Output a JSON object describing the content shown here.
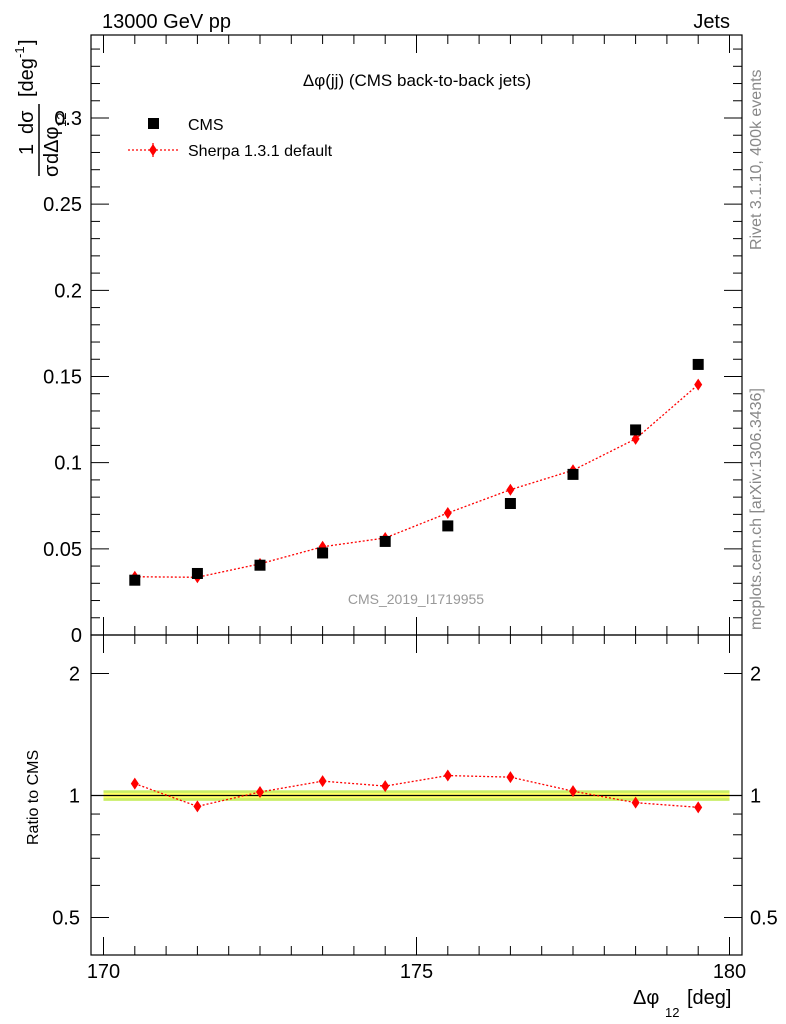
{
  "header": {
    "left": "13000 GeV pp",
    "right": "Jets"
  },
  "side_labels": {
    "rivet": "Rivet 3.1.10,  400k events",
    "mcplots": "mcplots.cern.ch [arXiv:1306.3436]"
  },
  "chart_data": [
    {
      "type": "scatter",
      "title": "Δφ(jj) (CMS back-to-back jets)",
      "watermark": "CMS_2019_I1719955",
      "ylabel": "1/σ dσ/dΔφ12 [deg⁻¹]",
      "ylabel_parts": {
        "num_left": "1",
        "num_right": "dσ",
        "den_left": "σ",
        "den_right": "dΔφ",
        "den_sub": "12",
        "unit": "[deg",
        "unit_sup": "-1",
        "unit_close": "]"
      },
      "xlim": [
        170,
        180
      ],
      "ylim": [
        0,
        0.35
      ],
      "y_ticks": [
        0,
        0.05,
        0.1,
        0.15,
        0.2,
        0.25,
        0.3
      ],
      "y_tick_labels": [
        "0",
        "0.05",
        "0.1",
        "0.15",
        "0.2",
        "0.25",
        "0.3"
      ],
      "legend_placement": "top-left",
      "series": [
        {
          "name": "CMS",
          "marker": "square",
          "color": "#000000",
          "x": [
            170.5,
            171.5,
            172.5,
            173.5,
            174.5,
            175.5,
            176.5,
            177.5,
            178.5,
            179.5
          ],
          "y": [
            0.0318,
            0.0357,
            0.0405,
            0.0476,
            0.0543,
            0.0633,
            0.0763,
            0.0932,
            0.119,
            0.157
          ]
        },
        {
          "name": "Sherpa 1.3.1 default",
          "marker": "diamond",
          "line": "dotted",
          "color": "#ff0000",
          "x": [
            170.5,
            171.5,
            172.5,
            173.5,
            174.5,
            175.5,
            176.5,
            177.5,
            178.5,
            179.5
          ],
          "y": [
            0.0338,
            0.0335,
            0.0413,
            0.0512,
            0.0563,
            0.0708,
            0.0843,
            0.0956,
            0.1138,
            0.1453
          ],
          "yerr": [
            0.0015,
            0.0012,
            0.0012,
            0.0015,
            0.0015,
            0.0016,
            0.0016,
            0.0016,
            0.0018,
            0.0022
          ]
        }
      ]
    },
    {
      "type": "scatter",
      "ylabel": "Ratio to CMS",
      "xlabel": "Δφ12 [deg]",
      "xlabel_parts": {
        "main": "Δφ",
        "sub": "12",
        "unit": "[deg]"
      },
      "xlim": [
        170,
        180
      ],
      "ylim": [
        0.35,
        2.3
      ],
      "x_ticks": [
        170,
        175,
        180
      ],
      "x_tick_labels": [
        "170",
        "175",
        "180"
      ],
      "y_ticks": [
        0.5,
        1,
        2
      ],
      "y_tick_labels": [
        "0.5",
        "1",
        "2"
      ],
      "band": {
        "inner": [
          0.985,
          1.015
        ],
        "outer": [
          0.97,
          1.03
        ],
        "inner_color": "#ffff66",
        "outer_color": "#c8ee66"
      },
      "series": [
        {
          "name": "Sherpa 1.3.1 default",
          "color": "#ff0000",
          "x": [
            170.5,
            171.5,
            172.5,
            173.5,
            174.5,
            175.5,
            176.5,
            177.5,
            178.5,
            179.5
          ],
          "y": [
            1.07,
            0.94,
            1.02,
            1.085,
            1.055,
            1.12,
            1.11,
            1.025,
            0.96,
            0.935
          ],
          "yerr": [
            0.03,
            0.025,
            0.028,
            0.026,
            0.024,
            0.022,
            0.02,
            0.015,
            0.01,
            0.008
          ]
        }
      ]
    }
  ]
}
